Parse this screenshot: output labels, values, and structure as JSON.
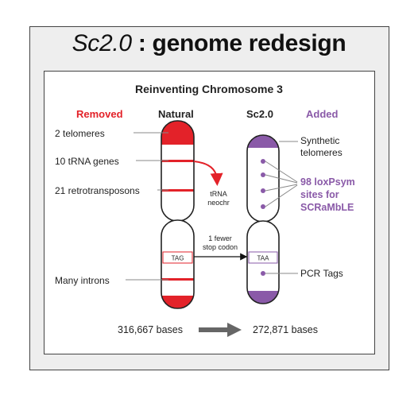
{
  "title": {
    "italic_part": "Sc2.0",
    "rest": " : genome redesign"
  },
  "subtitle": "Reinventing Chromosome 3",
  "columns": {
    "removed": "Removed",
    "natural": "Natural",
    "sc20": "Sc2.0",
    "added": "Added"
  },
  "left_labels": {
    "telomeres": "2 telomeres",
    "trna": "10 tRNA genes",
    "retro": "21 retrotransposons",
    "introns": "Many introns"
  },
  "middle_labels": {
    "trna_line1": "tRNA",
    "trna_line2": "neochr",
    "codon_line1": "1 fewer",
    "codon_line2": "stop codon"
  },
  "natural_codon": "TAG",
  "synthetic_codon": "TAA",
  "right_labels": {
    "synth_line1": "Synthetic",
    "synth_line2": "telomeres",
    "loxp_line1": "98 loxPsym",
    "loxp_line2": "sites for",
    "loxp_line3": "SCRaMbLE",
    "pcr": "PCR Tags"
  },
  "bases": {
    "natural": "316,667 bases",
    "synthetic": "272,871 bases"
  },
  "colors": {
    "removed_red": "#e32229",
    "added_purple": "#8a5aa8",
    "arrow_gray": "#666666"
  }
}
